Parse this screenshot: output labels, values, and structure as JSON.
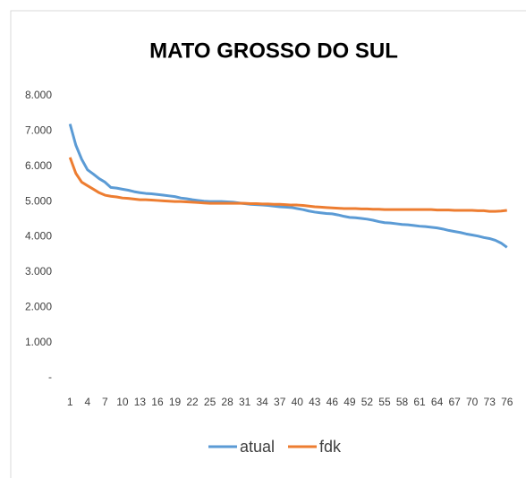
{
  "chart_data": {
    "type": "line",
    "title": "MATO GROSSO DO SUL",
    "categories": [
      1,
      null,
      null,
      4,
      null,
      null,
      7,
      null,
      null,
      10,
      null,
      null,
      13,
      null,
      null,
      16,
      null,
      null,
      19,
      null,
      null,
      22,
      null,
      null,
      25,
      null,
      null,
      28,
      null,
      null,
      31,
      null,
      null,
      34,
      null,
      null,
      37,
      null,
      null,
      40,
      null,
      null,
      43,
      null,
      null,
      46,
      null,
      null,
      49,
      null,
      null,
      52,
      null,
      null,
      55,
      null,
      null,
      58,
      null,
      null,
      61,
      null,
      null,
      64,
      null,
      null,
      67,
      null,
      null,
      70,
      null,
      null,
      73,
      null,
      null,
      76
    ],
    "series": [
      {
        "name": "atual",
        "color": "#5b9bd5",
        "values": [
          7200,
          6600,
          6200,
          5900,
          5780,
          5650,
          5550,
          5400,
          5380,
          5350,
          5320,
          5280,
          5250,
          5230,
          5220,
          5200,
          5180,
          5160,
          5140,
          5100,
          5080,
          5050,
          5030,
          5010,
          5000,
          5000,
          5000,
          4990,
          4980,
          4960,
          4940,
          4920,
          4910,
          4900,
          4890,
          4870,
          4850,
          4840,
          4830,
          4800,
          4770,
          4730,
          4700,
          4680,
          4660,
          4650,
          4620,
          4580,
          4550,
          4540,
          4520,
          4500,
          4470,
          4430,
          4400,
          4390,
          4370,
          4350,
          4340,
          4320,
          4300,
          4290,
          4270,
          4250,
          4220,
          4180,
          4150,
          4120,
          4080,
          4050,
          4020,
          3980,
          3950,
          3900,
          3820,
          3700
        ]
      },
      {
        "name": "fdk",
        "color": "#ed7d31",
        "values": [
          6250,
          5800,
          5550,
          5450,
          5350,
          5250,
          5180,
          5150,
          5130,
          5100,
          5090,
          5070,
          5050,
          5050,
          5040,
          5030,
          5020,
          5010,
          5000,
          5000,
          4990,
          4980,
          4970,
          4960,
          4950,
          4950,
          4950,
          4950,
          4950,
          4950,
          4950,
          4940,
          4940,
          4930,
          4930,
          4920,
          4920,
          4910,
          4900,
          4900,
          4890,
          4870,
          4850,
          4840,
          4830,
          4820,
          4810,
          4800,
          4800,
          4800,
          4790,
          4790,
          4780,
          4780,
          4770,
          4770,
          4770,
          4770,
          4770,
          4770,
          4770,
          4770,
          4770,
          4760,
          4760,
          4760,
          4750,
          4750,
          4750,
          4750,
          4740,
          4740,
          4720,
          4720,
          4730,
          4750
        ]
      }
    ],
    "ylim": [
      0,
      8000
    ],
    "yticks": [
      {
        "value": 0,
        "label": "-"
      },
      {
        "value": 1000,
        "label": "1.000"
      },
      {
        "value": 2000,
        "label": "2.000"
      },
      {
        "value": 3000,
        "label": "3.000"
      },
      {
        "value": 4000,
        "label": "4.000"
      },
      {
        "value": 5000,
        "label": "5.000"
      },
      {
        "value": 6000,
        "label": "6.000"
      },
      {
        "value": 7000,
        "label": "7.000"
      },
      {
        "value": 8000,
        "label": "8.000"
      }
    ],
    "grid": false,
    "legend": "bottom"
  }
}
